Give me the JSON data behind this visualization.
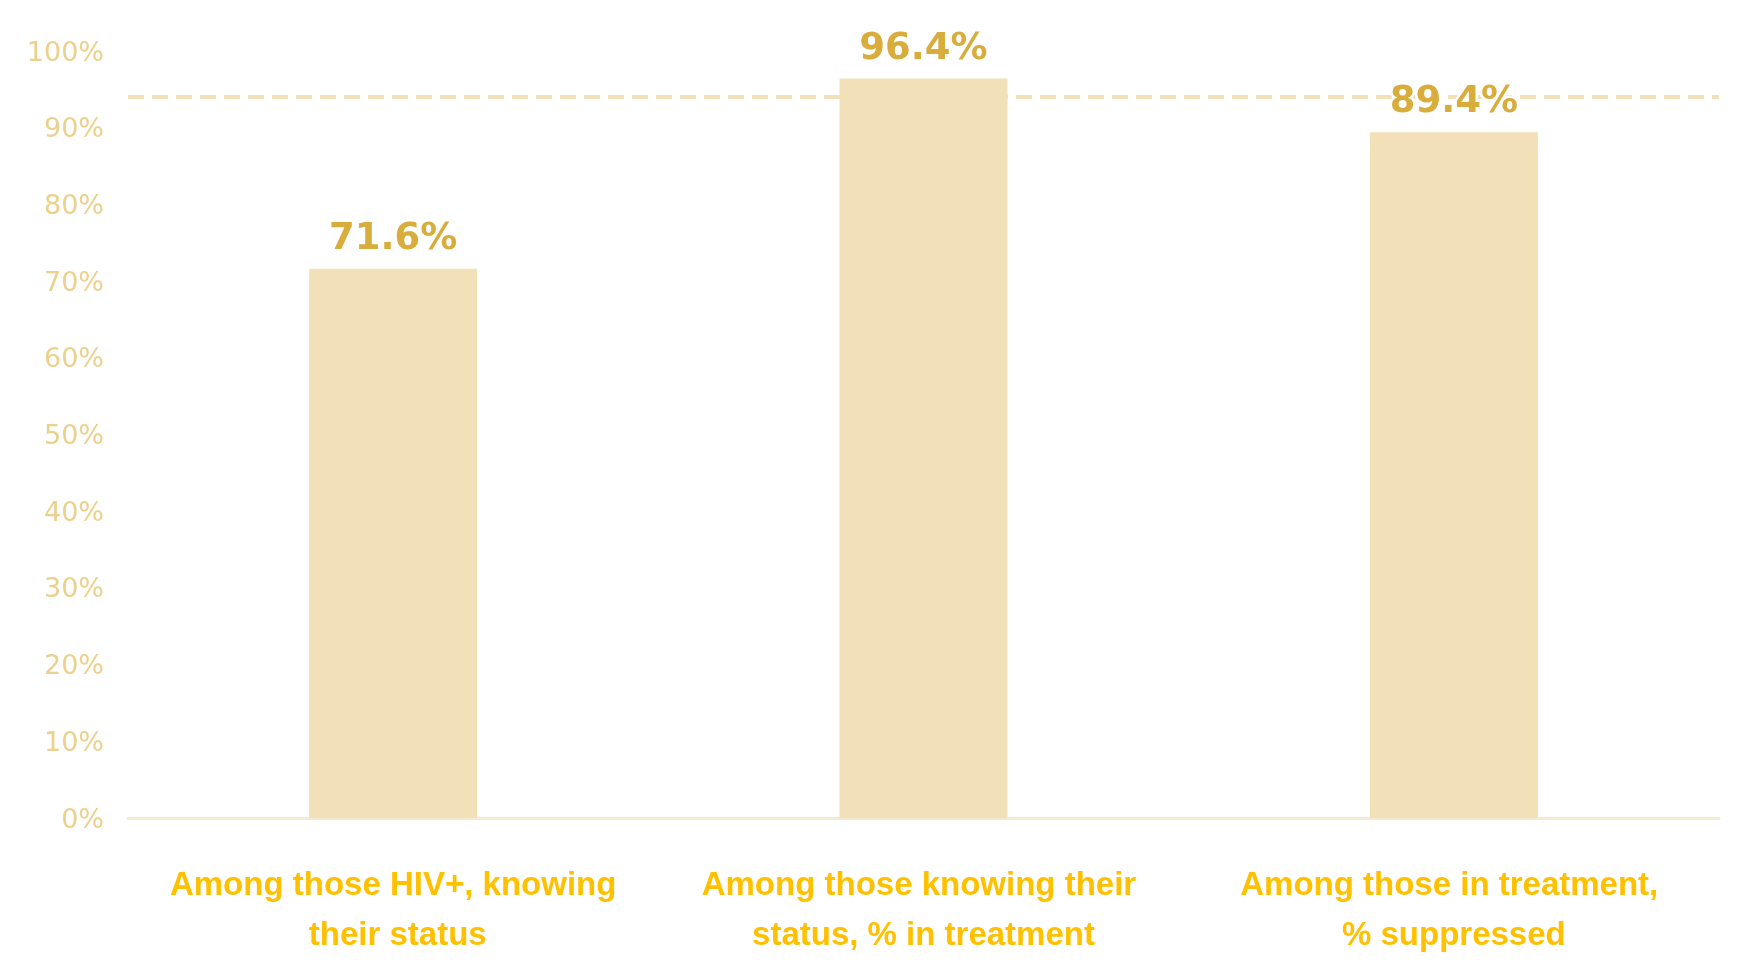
{
  "chart_data": {
    "type": "bar",
    "categories": [
      "Among those HIV+, knowing their status",
      "Among those knowing their status, % in treatment",
      "Among those in treatment, % suppressed"
    ],
    "values": [
      71.6,
      96.4,
      89.4
    ],
    "value_labels": [
      "71.6%",
      "96.4%",
      "89.4%"
    ],
    "color": "#f2e1b8",
    "ylim": [
      0,
      100
    ],
    "yticks": [
      {
        "value": 0,
        "label": "0%"
      },
      {
        "value": 10,
        "label": "10%"
      },
      {
        "value": 20,
        "label": "20%"
      },
      {
        "value": 30,
        "label": "30%"
      },
      {
        "value": 40,
        "label": "40%"
      },
      {
        "value": 50,
        "label": "50%"
      },
      {
        "value": 60,
        "label": "60%"
      },
      {
        "value": 70,
        "label": "70%"
      },
      {
        "value": 80,
        "label": "80%"
      },
      {
        "value": 90,
        "label": "90%"
      },
      {
        "value": 100,
        "label": "100%"
      }
    ],
    "ref_lines": [
      {
        "axis": "y",
        "value": 94,
        "label": null,
        "color": "#f2e1b8",
        "line_style": "dashed"
      }
    ],
    "grid": false
  }
}
